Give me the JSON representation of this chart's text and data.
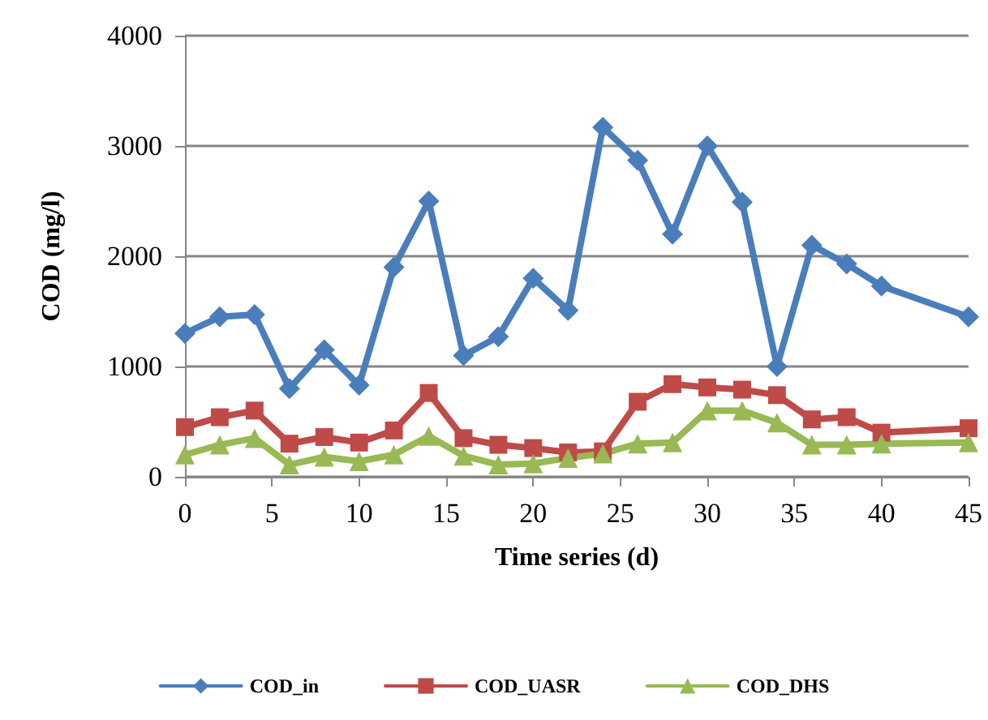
{
  "chart_data": {
    "type": "line",
    "xlabel": "Time series (d)",
    "ylabel": "COD (mg/l)",
    "x": [
      0,
      2,
      4,
      6,
      8,
      10,
      12,
      14,
      16,
      18,
      20,
      22,
      24,
      26,
      28,
      30,
      32,
      34,
      36,
      38,
      40,
      45
    ],
    "series": [
      {
        "name": "COD_in",
        "color": "#4a7ebb",
        "marker": "diamond",
        "values": [
          1300,
          1450,
          1470,
          800,
          1150,
          830,
          1900,
          2500,
          1100,
          1270,
          1800,
          1510,
          3170,
          2870,
          2200,
          3000,
          2490,
          1000,
          2100,
          1930,
          1730,
          1450
        ]
      },
      {
        "name": "COD_UASR",
        "color": "#be4b48",
        "marker": "square",
        "values": [
          450,
          540,
          600,
          300,
          360,
          310,
          420,
          760,
          350,
          290,
          260,
          220,
          230,
          680,
          840,
          810,
          790,
          740,
          520,
          540,
          400,
          440
        ]
      },
      {
        "name": "COD_DHS",
        "color": "#98b954",
        "marker": "triangle",
        "values": [
          200,
          290,
          350,
          110,
          180,
          140,
          200,
          370,
          190,
          110,
          120,
          170,
          210,
          300,
          310,
          600,
          600,
          490,
          290,
          290,
          300,
          310
        ]
      }
    ],
    "xlim": [
      0,
      45
    ],
    "xticks": [
      0,
      5,
      10,
      15,
      20,
      25,
      30,
      35,
      40,
      45
    ],
    "ylim": [
      0,
      4000
    ],
    "yticks": [
      0,
      1000,
      2000,
      3000,
      4000
    ],
    "grid": "y",
    "legend": "bottom",
    "line_style": "solid"
  }
}
